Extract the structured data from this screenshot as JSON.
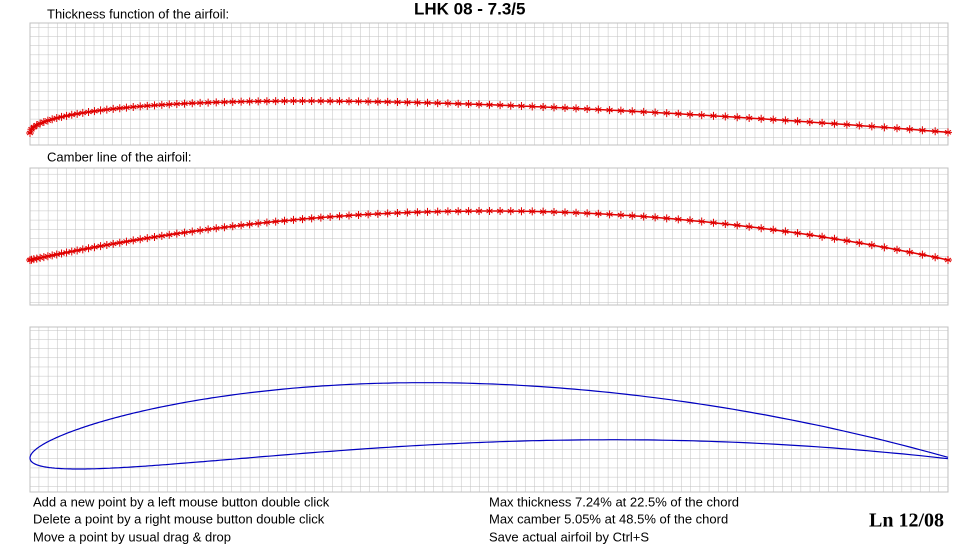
{
  "header": {
    "title": "LHK   08 - 7.3/5"
  },
  "panels": {
    "thickness_label": "Thickness function of the airfoil:",
    "camber_label": "Camber line of the airfoil:"
  },
  "help": [
    "Add a new point by a left mouse button double click",
    "Delete a point by a right mouse button double click",
    "Move a point by usual drag & drop"
  ],
  "info": [
    "Max thickness 7.24% at 22.5% of the chord",
    "Max camber 5.05% at 48.5% of the chord",
    "Save actual airfoil by Ctrl+S"
  ],
  "corner": "Ln 12/08"
}
